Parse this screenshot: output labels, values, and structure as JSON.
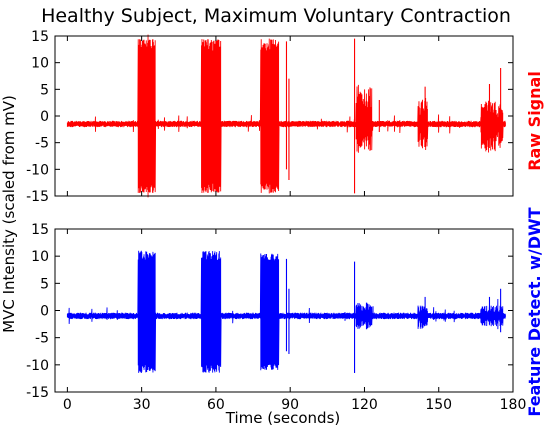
{
  "chart_data": {
    "type": "line",
    "title": "Healthy Subject, Maximum Voluntary Contraction",
    "xlabel": "Time (seconds)",
    "ylabel": "MVC Intensity (scaled from mV)",
    "xlim": [
      -5,
      180
    ],
    "xticks": [
      "0",
      "30",
      "60",
      "90",
      "120",
      "150",
      "180"
    ],
    "xtick_values": [
      0,
      30,
      60,
      90,
      120,
      150,
      180
    ],
    "grid": false,
    "panels": [
      {
        "name": "Raw Signal",
        "color": "#ff0000",
        "ylim": [
          -15,
          15
        ],
        "yticks": [
          "15",
          "10",
          "5",
          "0",
          "-5",
          "-10",
          "-15"
        ],
        "ytick_values": [
          15,
          10,
          5,
          0,
          -5,
          -10,
          -15
        ],
        "baseline": -1.5,
        "bursts": [
          {
            "start": 28.5,
            "end": 35.5,
            "max": 14.5,
            "min": -14.5
          },
          {
            "start": 54.0,
            "end": 62.0,
            "max": 14.5,
            "min": -14.5
          },
          {
            "start": 78.0,
            "end": 85.5,
            "max": 14.5,
            "min": -14.5
          },
          {
            "start": 116.5,
            "end": 123.0,
            "max": 6.0,
            "min": -7.0
          },
          {
            "start": 141.5,
            "end": 145.5,
            "max": 3.5,
            "min": -6.5
          },
          {
            "start": 167.0,
            "end": 176.0,
            "max": 3.0,
            "min": -7.0
          }
        ],
        "spikes": [
          {
            "t": 116.0,
            "max": 14.5,
            "min": -14.5
          },
          {
            "t": 88.5,
            "max": 14.0,
            "min": -10.0
          },
          {
            "t": 89.5,
            "max": 7.0,
            "min": -12.0
          },
          {
            "t": 175.0,
            "max": 9.0,
            "min": -5.0
          },
          {
            "t": 170.5,
            "max": 6.0,
            "min": -4.0
          },
          {
            "t": 144.5,
            "max": 5.5,
            "min": -3.5
          },
          {
            "t": 126.0,
            "max": 3.0,
            "min": -3.0
          }
        ]
      },
      {
        "name": "Feature Detect. w/DWT",
        "color": "#0000ff",
        "ylim": [
          -15,
          15
        ],
        "yticks": [
          "15",
          "10",
          "5",
          "0",
          "-5",
          "-10",
          "-15"
        ],
        "ytick_values": [
          15,
          10,
          5,
          0,
          -5,
          -10,
          -15
        ],
        "baseline": -1.0,
        "bursts": [
          {
            "start": 28.5,
            "end": 35.5,
            "max": 11.0,
            "min": -11.5
          },
          {
            "start": 54.0,
            "end": 62.0,
            "max": 11.0,
            "min": -11.5
          },
          {
            "start": 78.0,
            "end": 85.5,
            "max": 10.5,
            "min": -11.0
          },
          {
            "start": 116.5,
            "end": 123.0,
            "max": 1.5,
            "min": -3.5
          },
          {
            "start": 141.5,
            "end": 145.5,
            "max": 1.0,
            "min": -3.5
          },
          {
            "start": 167.0,
            "end": 176.0,
            "max": 1.0,
            "min": -3.0
          }
        ],
        "spikes": [
          {
            "t": 116.0,
            "max": 9.0,
            "min": -11.5
          },
          {
            "t": 88.5,
            "max": 9.5,
            "min": -7.5
          },
          {
            "t": 89.5,
            "max": 4.0,
            "min": -8.0
          },
          {
            "t": 175.0,
            "max": 4.0,
            "min": -4.0
          },
          {
            "t": 170.5,
            "max": 2.5,
            "min": -2.5
          },
          {
            "t": 144.5,
            "max": 2.5,
            "min": -2.5
          }
        ]
      }
    ]
  }
}
